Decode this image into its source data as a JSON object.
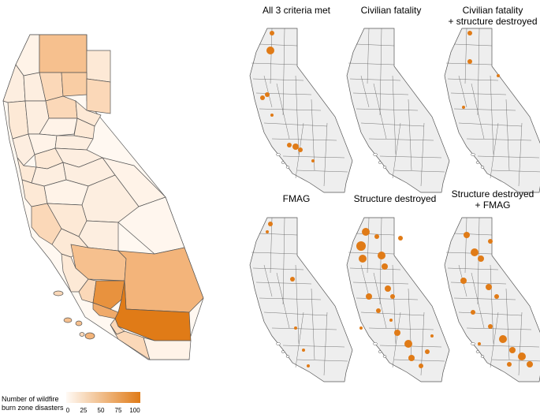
{
  "main_map": {
    "fill_colors": [
      "#fff6ee",
      "#fde9d6",
      "#fbd8b8",
      "#f6c08e",
      "#f3b47a",
      "#e8923e",
      "#e07b17"
    ]
  },
  "panels": [
    {
      "title_line1": "All 3 criteria met",
      "title_line2": ""
    },
    {
      "title_line1": "Civilian fatality",
      "title_line2": ""
    },
    {
      "title_line1": "Civilian fatality",
      "title_line2": "+ structure destroyed"
    },
    {
      "title_line1": "FMAG",
      "title_line2": ""
    },
    {
      "title_line1": "Structure destroyed",
      "title_line2": ""
    },
    {
      "title_line1": "Structure destroyed",
      "title_line2": "+ FMAG"
    }
  ],
  "legend": {
    "title_line1": "Number of wildfire",
    "title_line2": "burn zone disasters",
    "ticks": [
      "0",
      "25",
      "50",
      "75",
      "100"
    ],
    "color_low": "#fffaf5",
    "color_high": "#e07b17"
  },
  "colors": {
    "state_fill": "#eeeeee",
    "county_line": "#555555",
    "burn_zone": "#e07b17"
  }
}
